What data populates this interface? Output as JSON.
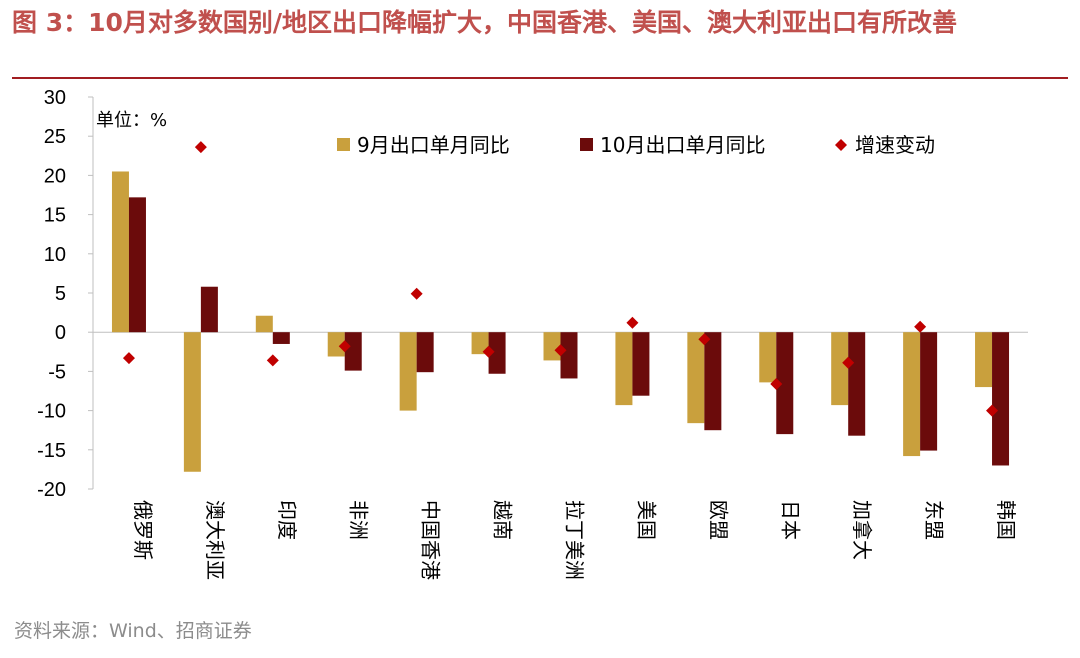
{
  "title": "图 3：10月对多数国别/地区出口降幅扩大，中国香港、美国、澳大利亚出口有所改善",
  "source": "资料来源：Wind、招商证券",
  "colors": {
    "title": "#c0504d",
    "rule": "#a11d21",
    "series_sep": "#c9a03d",
    "series_oct": "#6b0b0b",
    "series_change": "#c00000"
  },
  "chart_data": {
    "type": "bar",
    "unit_label": "单位：%",
    "ylim": [
      -20,
      30
    ],
    "yticks": [
      30,
      25,
      20,
      15,
      10,
      5,
      0,
      -5,
      -10,
      -15,
      -20
    ],
    "grid": false,
    "legend_position": "top",
    "categories": [
      "俄罗斯",
      "澳大利亚",
      "印度",
      "非洲",
      "中国香港",
      "越南",
      "拉丁美洲",
      "美国",
      "欧盟",
      "日本",
      "加拿大",
      "东盟",
      "韩国"
    ],
    "series": [
      {
        "name": "9月出口单月同比",
        "kind": "bar",
        "values": [
          20.5,
          -17.8,
          2.1,
          -3.1,
          -10.0,
          -2.8,
          -3.6,
          -9.3,
          -11.6,
          -6.4,
          -9.3,
          -15.8,
          -7.0
        ]
      },
      {
        "name": "10月出口单月同比",
        "kind": "bar",
        "values": [
          17.2,
          5.8,
          -1.5,
          -4.9,
          -5.1,
          -5.3,
          -5.9,
          -8.1,
          -12.5,
          -13.0,
          -13.2,
          -15.1,
          -17.0
        ]
      },
      {
        "name": "增速变动",
        "kind": "marker",
        "values": [
          -3.3,
          23.6,
          -3.6,
          -1.8,
          4.9,
          -2.5,
          -2.3,
          1.2,
          -0.9,
          -6.6,
          -3.9,
          0.7,
          -10.0
        ]
      }
    ]
  }
}
